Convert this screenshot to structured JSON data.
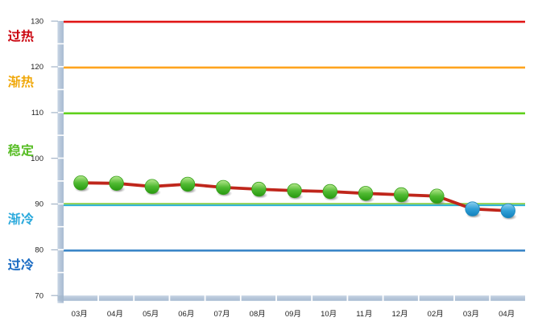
{
  "chart_data": {
    "type": "line",
    "title": "",
    "categories": [
      "03月",
      "04月",
      "05月",
      "06月",
      "07月",
      "08月",
      "09月",
      "10月",
      "11月",
      "12月",
      "02月",
      "03月",
      "04月"
    ],
    "values": [
      94.6,
      94.5,
      93.8,
      94.3,
      93.6,
      93.2,
      92.9,
      92.7,
      92.3,
      92.0,
      91.7,
      88.9,
      88.5
    ],
    "point_colors": [
      "green",
      "green",
      "green",
      "green",
      "green",
      "green",
      "green",
      "green",
      "green",
      "green",
      "green",
      "blue",
      "blue"
    ],
    "series_line_color": "#bf261b",
    "marker_palette": {
      "green": "#3aa81e",
      "blue": "#1e8cc8"
    },
    "ylim": [
      70,
      130
    ],
    "ytick_step": 10,
    "yticks": [
      "130",
      "120",
      "110",
      "100",
      "90",
      "80",
      "70"
    ],
    "grid": "off",
    "legend": "none",
    "xlabel": "",
    "ylabel": "",
    "zone_labels": [
      {
        "label": "过热",
        "range": [
          120,
          130
        ],
        "color": "#cc0a14"
      },
      {
        "label": "渐热",
        "range": [
          110,
          120
        ],
        "color": "#f0a80a"
      },
      {
        "label": "稳定",
        "range": [
          90,
          110
        ],
        "color": "#5abe28"
      },
      {
        "label": "渐冷",
        "range": [
          80,
          90
        ],
        "color": "#2caadc"
      },
      {
        "label": "过冷",
        "range": [
          70,
          80
        ],
        "color": "#1e6ec4"
      }
    ],
    "boundary_lines": [
      {
        "value": 130,
        "color": "#e01616",
        "width": 2.6
      },
      {
        "value": 120,
        "color": "#ffa41e",
        "width": 2.6
      },
      {
        "value": 110,
        "color": "#5fd01c",
        "width": 2.6
      },
      {
        "value": 90,
        "color": "#90d052",
        "width": 2
      },
      {
        "value": 89.65,
        "color": "#2bb2d4",
        "width": 2
      },
      {
        "value": 80,
        "color": "#3c86c8",
        "width": 2.6
      }
    ]
  }
}
